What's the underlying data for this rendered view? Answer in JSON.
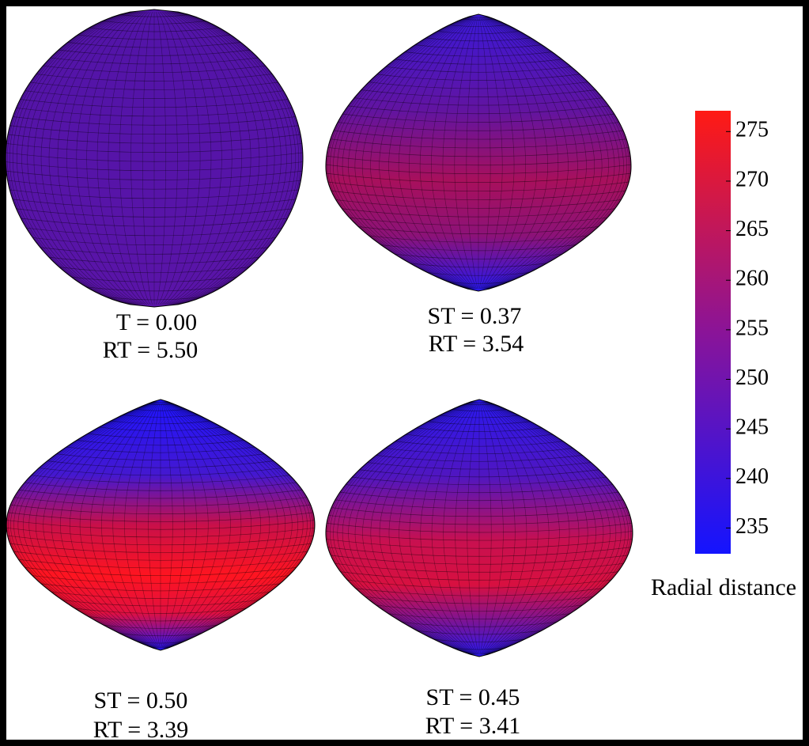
{
  "panels": [
    {
      "line1": "T = 0.00",
      "line2": "RT = 5.50"
    },
    {
      "line1": "ST = 0.37",
      "line2": "RT = 3.54"
    },
    {
      "line1": "ST = 0.50",
      "line2": "RT = 3.39"
    },
    {
      "line1": "ST = 0.45",
      "line2": "RT = 3.41"
    }
  ],
  "colorbar": {
    "label": "Radial distance",
    "clim": [
      232.4,
      277.1
    ],
    "ticks": [
      235,
      240,
      245,
      250,
      255,
      260,
      265,
      270,
      275
    ]
  }
}
